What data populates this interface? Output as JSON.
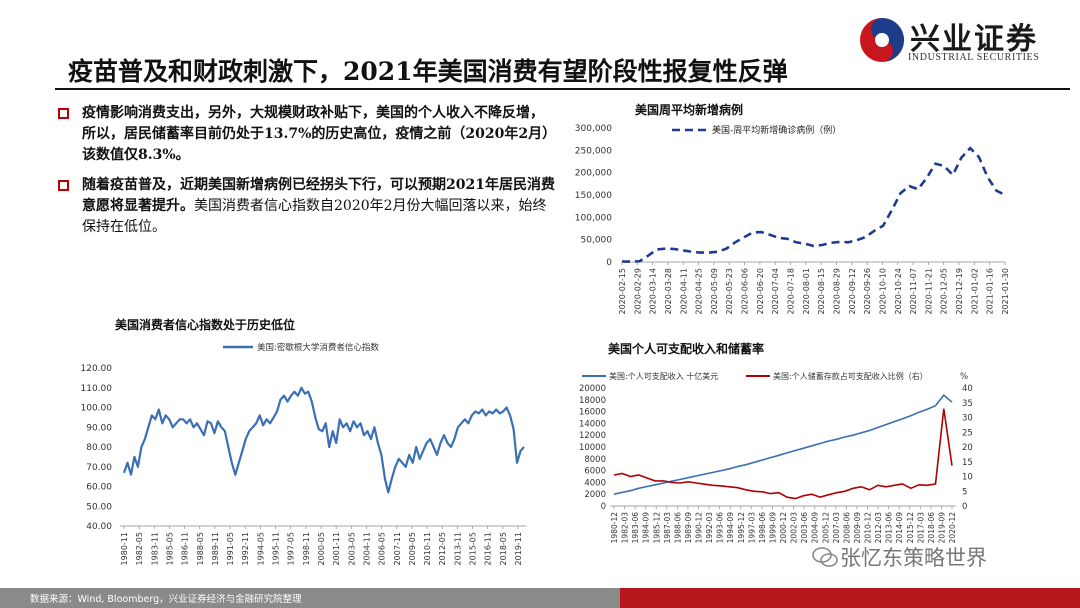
{
  "header": {
    "title": "疫苗普及和财政刺激下，2021年美国消费有望阶段性报复性反弹",
    "logo_text": "兴业证券",
    "logo_sub": "INDUSTRIAL SECURITIES"
  },
  "bullets": [
    {
      "text_normal": "疫情影响消费支出，另外，大规模财政补贴下，美国的个人收入不降反增，所以，居民储蓄率目前仍处于",
      "text_bold": "13.7%的历史高位，疫情之前（2020年2月）该数值仅8.3%。",
      "text_tail": ""
    },
    {
      "text_normal": "",
      "text_bold": "随着疫苗普及，近期美国新增病例已经拐头下行，可以预期2021年居民消费意愿将显著提升。",
      "text_tail": "美国消费者信心指数自2020年2月份大幅回落以来，始终保持在低位。"
    }
  ],
  "footer": {
    "source": "数据来源：Wind, Bloomberg，兴业证券经济与金融研究院整理"
  },
  "watermark": "张忆东策略世界",
  "colors": {
    "accent": "#c00000",
    "navy": "#1f3a93",
    "blue": "#3a6fb6",
    "red": "#b00000"
  },
  "chart_data": [
    {
      "type": "line",
      "chart_title": "美国周平均新增病例",
      "series": [
        {
          "name": "美国-周平均新增确诊病例（例）",
          "style": "dashed",
          "color": "#1f3a93",
          "values": [
            800,
            1000,
            1500,
            14000,
            28000,
            30000,
            29000,
            26000,
            23000,
            21000,
            21000,
            23000,
            30000,
            44000,
            55000,
            66000,
            67000,
            61000,
            54000,
            52000,
            44000,
            41000,
            36000,
            38000,
            43000,
            45000,
            44000,
            49000,
            56000,
            70000,
            81000,
            116000,
            154000,
            170000,
            163000,
            188000,
            220000,
            215000,
            195000,
            234000,
            255000,
            235000,
            190000,
            160000,
            150000
          ]
        }
      ],
      "x_tick_labels": [
        "2020-02-15",
        "2020-02-29",
        "2020-03-14",
        "2020-03-28",
        "2020-04-11",
        "2020-04-25",
        "2020-05-09",
        "2020-05-23",
        "2020-06-06",
        "2020-06-20",
        "2020-07-04",
        "2020-07-18",
        "2020-08-01",
        "2020-08-15",
        "2020-08-29",
        "2020-09-12",
        "2020-09-26",
        "2020-10-10",
        "2020-10-24",
        "2020-11-07",
        "2020-11-21",
        "2020-12-05",
        "2020-12-19",
        "2021-01-02",
        "2021-01-16",
        "2021-01-30"
      ],
      "y_tick_labels": [
        "0",
        "50,000",
        "100,000",
        "150,000",
        "200,000",
        "250,000",
        "300,000"
      ],
      "ylim": [
        0,
        300000
      ]
    },
    {
      "type": "line",
      "chart_title": "美国消费者信心指数处于历史低位",
      "series": [
        {
          "name": "美国:密歇根大学消费者信心指数",
          "color": "#3a6fb6",
          "values": [
            67,
            72,
            66,
            75,
            70,
            80,
            84,
            90,
            96,
            94,
            99,
            92,
            96,
            94,
            90,
            92,
            94,
            94,
            92,
            94,
            90,
            92,
            89,
            86,
            93,
            92,
            87,
            93,
            90,
            88,
            80,
            72,
            66,
            72,
            78,
            84,
            88,
            90,
            92,
            96,
            91,
            94,
            92,
            95,
            98,
            104,
            106,
            103,
            106,
            108,
            106,
            110,
            107,
            108,
            103,
            95,
            89,
            88,
            92,
            80,
            88,
            82,
            94,
            90,
            92,
            88,
            93,
            90,
            92,
            86,
            88,
            84,
            90,
            82,
            76,
            64,
            57,
            64,
            70,
            74,
            72,
            70,
            76,
            72,
            80,
            74,
            78,
            82,
            84,
            80,
            76,
            82,
            86,
            82,
            80,
            84,
            90,
            92,
            94,
            92,
            96,
            98,
            97,
            99,
            96,
            98,
            97,
            99,
            97,
            98,
            100,
            96,
            89,
            72,
            78,
            80
          ]
        }
      ],
      "x_tick_labels": [
        "1980-11",
        "1982-05",
        "1983-11",
        "1985-05",
        "1986-11",
        "1988-05",
        "1989-11",
        "1991-05",
        "1992-11",
        "1994-05",
        "1995-11",
        "1997-05",
        "1998-11",
        "2000-05",
        "2001-11",
        "2003-05",
        "2004-11",
        "2006-05",
        "2007-11",
        "2009-05",
        "2010-11",
        "2012-05",
        "2013-11",
        "2015-05",
        "2016-11",
        "2018-05",
        "2019-11"
      ],
      "y_tick_labels": [
        "40.00",
        "50.00",
        "60.00",
        "70.00",
        "80.00",
        "90.00",
        "100.00",
        "110.00",
        "120.00"
      ],
      "ylim": [
        40,
        120
      ]
    },
    {
      "type": "line",
      "chart_title": "美国个人可支配收入和储蓄率",
      "series": [
        {
          "name": "美国:个人可支配收入 十亿美元",
          "axis": "left",
          "color": "#3a6fb6",
          "values": [
            2000,
            2300,
            2600,
            3000,
            3300,
            3600,
            3900,
            4200,
            4500,
            4800,
            5100,
            5400,
            5700,
            6000,
            6300,
            6700,
            7000,
            7400,
            7800,
            8200,
            8600,
            9000,
            9400,
            9800,
            10200,
            10600,
            11000,
            11300,
            11700,
            12000,
            12400,
            12800,
            13300,
            13800,
            14300,
            14800,
            15300,
            15900,
            16400,
            17000,
            18800,
            17600
          ]
        },
        {
          "name": "美国:个人储蓄存款占可支配收入比例（右）",
          "axis": "right",
          "color": "#b00000",
          "values": [
            10.5,
            11,
            10,
            10.5,
            9.5,
            8.5,
            8.5,
            8,
            7.8,
            8.2,
            7.8,
            7.4,
            7,
            6.8,
            6.5,
            6.2,
            5.5,
            5,
            4.8,
            4.2,
            4.5,
            3,
            2.5,
            3.5,
            4,
            3,
            3.8,
            4.5,
            5,
            6,
            6.5,
            5.5,
            7,
            6.5,
            7,
            7.5,
            6,
            7.2,
            7,
            7.5,
            33,
            13.7
          ]
        }
      ],
      "x_tick_labels": [
        "1980-12",
        "1982-03",
        "1983-06",
        "1984-09",
        "1985-12",
        "1987-03",
        "1988-06",
        "1989-09",
        "1990-12",
        "1992-03",
        "1993-06",
        "1994-09",
        "1995-12",
        "1997-03",
        "1998-06",
        "1999-09",
        "2000-12",
        "2002-03",
        "2003-06",
        "2004-09",
        "2005-12",
        "2007-03",
        "2008-06",
        "2009-09",
        "2010-12",
        "2012-03",
        "2013-06",
        "2014-09",
        "2015-12",
        "2017-03",
        "2018-06",
        "2019-09",
        "2020-12"
      ],
      "y_left_tick_labels": [
        "0",
        "2000",
        "4000",
        "6000",
        "8000",
        "10000",
        "12000",
        "14000",
        "16000",
        "18000",
        "20000"
      ],
      "y_right_tick_labels": [
        "0",
        "5",
        "10",
        "15",
        "20",
        "25",
        "30",
        "35",
        "40"
      ],
      "ylim_left": [
        0,
        20000
      ],
      "ylim_right": [
        0,
        40
      ],
      "right_unit": "%"
    }
  ]
}
